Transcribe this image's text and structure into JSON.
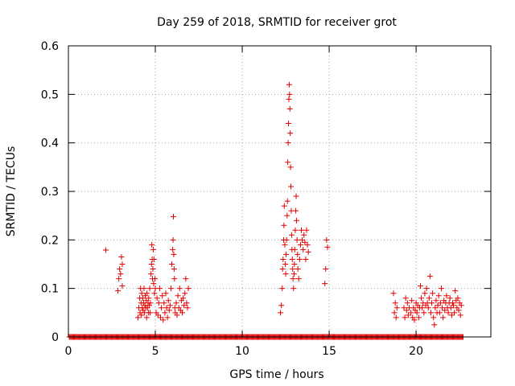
{
  "colors": {
    "series": "#e00000",
    "axis": "#000000",
    "grid": "#a0a0a0"
  },
  "chart_data": {
    "type": "scatter",
    "title": "Day 259 of 2018, SRMTID for receiver grot",
    "xlabel": "GPS time / hours",
    "ylabel": "SRMTID / TECUs",
    "xlim": [
      0,
      24.3
    ],
    "ylim": [
      0,
      0.6
    ],
    "xticks": [
      0,
      5,
      10,
      15,
      20
    ],
    "xtick_labels": [
      "0",
      "5",
      "10",
      "15",
      "20"
    ],
    "yticks": [
      0,
      0.1,
      0.2,
      0.3,
      0.4,
      0.5,
      0.6
    ],
    "ytick_labels": [
      "0",
      "0.1",
      "0.2",
      "0.3",
      "0.4",
      "0.5",
      "0.6"
    ],
    "grid": true,
    "marker": "plus",
    "baseline": {
      "y": 0,
      "x_start": 0.05,
      "x_end": 22.7,
      "step": 0.05
    },
    "series": [
      {
        "name": "SRMTID",
        "points": [
          [
            2.15,
            0.179
          ],
          [
            2.85,
            0.095
          ],
          [
            2.9,
            0.12
          ],
          [
            2.95,
            0.14
          ],
          [
            3.0,
            0.13
          ],
          [
            3.05,
            0.165
          ],
          [
            3.1,
            0.105
          ],
          [
            3.1,
            0.15
          ],
          [
            4.0,
            0.04
          ],
          [
            4.05,
            0.06
          ],
          [
            4.1,
            0.08
          ],
          [
            4.12,
            0.05
          ],
          [
            4.15,
            0.1
          ],
          [
            4.18,
            0.07
          ],
          [
            4.2,
            0.045
          ],
          [
            4.22,
            0.09
          ],
          [
            4.25,
            0.06
          ],
          [
            4.28,
            0.08
          ],
          [
            4.3,
            0.055
          ],
          [
            4.32,
            0.07
          ],
          [
            4.35,
            0.1
          ],
          [
            4.38,
            0.05
          ],
          [
            4.4,
            0.065
          ],
          [
            4.42,
            0.085
          ],
          [
            4.45,
            0.06
          ],
          [
            4.48,
            0.075
          ],
          [
            4.5,
            0.04
          ],
          [
            4.52,
            0.09
          ],
          [
            4.55,
            0.06
          ],
          [
            4.58,
            0.07
          ],
          [
            4.6,
            0.05
          ],
          [
            4.62,
            0.08
          ],
          [
            4.65,
            0.065
          ],
          [
            4.68,
            0.1
          ],
          [
            4.7,
            0.05
          ],
          [
            4.72,
            0.07
          ],
          [
            4.75,
            0.13
          ],
          [
            4.78,
            0.15
          ],
          [
            4.8,
            0.19
          ],
          [
            4.82,
            0.16
          ],
          [
            4.84,
            0.12
          ],
          [
            4.86,
            0.14
          ],
          [
            4.88,
            0.18
          ],
          [
            4.9,
            0.11
          ],
          [
            4.92,
            0.16
          ],
          [
            4.95,
            0.09
          ],
          [
            4.98,
            0.12
          ],
          [
            5.0,
            0.1
          ],
          [
            5.05,
            0.05
          ],
          [
            5.1,
            0.08
          ],
          [
            5.15,
            0.045
          ],
          [
            5.2,
            0.07
          ],
          [
            5.25,
            0.1
          ],
          [
            5.3,
            0.04
          ],
          [
            5.35,
            0.06
          ],
          [
            5.4,
            0.085
          ],
          [
            5.45,
            0.035
          ],
          [
            5.5,
            0.07
          ],
          [
            5.55,
            0.05
          ],
          [
            5.6,
            0.09
          ],
          [
            5.65,
            0.06
          ],
          [
            5.7,
            0.04
          ],
          [
            5.75,
            0.075
          ],
          [
            5.8,
            0.055
          ],
          [
            5.85,
            0.065
          ],
          [
            5.9,
            0.1
          ],
          [
            5.95,
            0.15
          ],
          [
            6.0,
            0.18
          ],
          [
            6.02,
            0.2
          ],
          [
            6.04,
            0.248
          ],
          [
            6.06,
            0.17
          ],
          [
            6.08,
            0.14
          ],
          [
            6.1,
            0.12
          ],
          [
            6.12,
            0.06
          ],
          [
            6.15,
            0.05
          ],
          [
            6.2,
            0.07
          ],
          [
            6.25,
            0.045
          ],
          [
            6.3,
            0.085
          ],
          [
            6.35,
            0.06
          ],
          [
            6.4,
            0.1
          ],
          [
            6.45,
            0.055
          ],
          [
            6.5,
            0.075
          ],
          [
            6.55,
            0.05
          ],
          [
            6.6,
            0.08
          ],
          [
            6.65,
            0.065
          ],
          [
            6.7,
            0.09
          ],
          [
            6.75,
            0.12
          ],
          [
            6.8,
            0.07
          ],
          [
            6.85,
            0.06
          ],
          [
            6.9,
            0.1
          ],
          [
            12.2,
            0.05
          ],
          [
            12.25,
            0.065
          ],
          [
            12.3,
            0.1
          ],
          [
            12.32,
            0.14
          ],
          [
            12.35,
            0.16
          ],
          [
            12.38,
            0.2
          ],
          [
            12.4,
            0.23
          ],
          [
            12.42,
            0.27
          ],
          [
            12.45,
            0.19
          ],
          [
            12.48,
            0.15
          ],
          [
            12.5,
            0.13
          ],
          [
            12.52,
            0.17
          ],
          [
            12.55,
            0.2
          ],
          [
            12.58,
            0.25
          ],
          [
            12.6,
            0.28
          ],
          [
            12.62,
            0.36
          ],
          [
            12.64,
            0.4
          ],
          [
            12.66,
            0.44
          ],
          [
            12.68,
            0.49
          ],
          [
            12.7,
            0.52
          ],
          [
            12.72,
            0.5
          ],
          [
            12.74,
            0.47
          ],
          [
            12.76,
            0.42
          ],
          [
            12.78,
            0.35
          ],
          [
            12.8,
            0.31
          ],
          [
            12.82,
            0.26
          ],
          [
            12.84,
            0.21
          ],
          [
            12.86,
            0.18
          ],
          [
            12.88,
            0.16
          ],
          [
            12.9,
            0.14
          ],
          [
            12.92,
            0.12
          ],
          [
            12.95,
            0.1
          ],
          [
            12.98,
            0.13
          ],
          [
            13.0,
            0.15
          ],
          [
            13.02,
            0.18
          ],
          [
            13.05,
            0.22
          ],
          [
            13.08,
            0.26
          ],
          [
            13.1,
            0.29
          ],
          [
            13.12,
            0.24
          ],
          [
            13.15,
            0.2
          ],
          [
            13.18,
            0.17
          ],
          [
            13.2,
            0.14
          ],
          [
            13.25,
            0.12
          ],
          [
            13.3,
            0.16
          ],
          [
            13.35,
            0.19
          ],
          [
            13.4,
            0.22
          ],
          [
            13.45,
            0.2
          ],
          [
            13.5,
            0.18
          ],
          [
            13.55,
            0.21
          ],
          [
            13.6,
            0.195
          ],
          [
            13.65,
            0.16
          ],
          [
            13.7,
            0.22
          ],
          [
            13.75,
            0.19
          ],
          [
            13.8,
            0.175
          ],
          [
            14.75,
            0.11
          ],
          [
            14.8,
            0.14
          ],
          [
            14.85,
            0.2
          ],
          [
            14.9,
            0.185
          ],
          [
            18.7,
            0.09
          ],
          [
            18.75,
            0.05
          ],
          [
            18.8,
            0.07
          ],
          [
            18.85,
            0.04
          ],
          [
            18.9,
            0.06
          ],
          [
            19.3,
            0.06
          ],
          [
            19.35,
            0.04
          ],
          [
            19.4,
            0.08
          ],
          [
            19.45,
            0.055
          ],
          [
            19.5,
            0.07
          ],
          [
            19.55,
            0.045
          ],
          [
            19.6,
            0.06
          ],
          [
            19.7,
            0.05
          ],
          [
            19.75,
            0.075
          ],
          [
            19.8,
            0.04
          ],
          [
            19.85,
            0.06
          ],
          [
            19.9,
            0.035
          ],
          [
            19.95,
            0.055
          ],
          [
            20.0,
            0.07
          ],
          [
            20.05,
            0.05
          ],
          [
            20.1,
            0.065
          ],
          [
            20.15,
            0.04
          ],
          [
            20.2,
            0.06
          ],
          [
            20.25,
            0.105
          ],
          [
            20.3,
            0.08
          ],
          [
            20.35,
            0.06
          ],
          [
            20.4,
            0.07
          ],
          [
            20.45,
            0.05
          ],
          [
            20.5,
            0.09
          ],
          [
            20.55,
            0.065
          ],
          [
            20.6,
            0.1
          ],
          [
            20.65,
            0.07
          ],
          [
            20.7,
            0.06
          ],
          [
            20.75,
            0.08
          ],
          [
            20.8,
            0.125
          ],
          [
            20.85,
            0.05
          ],
          [
            20.9,
            0.07
          ],
          [
            20.95,
            0.09
          ],
          [
            21.0,
            0.04
          ],
          [
            21.05,
            0.025
          ],
          [
            21.1,
            0.06
          ],
          [
            21.15,
            0.075
          ],
          [
            21.2,
            0.05
          ],
          [
            21.25,
            0.065
          ],
          [
            21.3,
            0.085
          ],
          [
            21.35,
            0.05
          ],
          [
            21.4,
            0.07
          ],
          [
            21.45,
            0.1
          ],
          [
            21.5,
            0.06
          ],
          [
            21.55,
            0.04
          ],
          [
            21.6,
            0.075
          ],
          [
            21.65,
            0.055
          ],
          [
            21.7,
            0.07
          ],
          [
            21.75,
            0.085
          ],
          [
            21.8,
            0.06
          ],
          [
            21.85,
            0.05
          ],
          [
            21.9,
            0.07
          ],
          [
            21.95,
            0.08
          ],
          [
            22.0,
            0.06
          ],
          [
            22.05,
            0.045
          ],
          [
            22.1,
            0.07
          ],
          [
            22.15,
            0.065
          ],
          [
            22.2,
            0.05
          ],
          [
            22.25,
            0.095
          ],
          [
            22.3,
            0.075
          ],
          [
            22.35,
            0.06
          ],
          [
            22.4,
            0.08
          ],
          [
            22.45,
            0.055
          ],
          [
            22.5,
            0.07
          ],
          [
            22.55,
            0.045
          ],
          [
            22.6,
            0.065
          ]
        ]
      }
    ]
  }
}
